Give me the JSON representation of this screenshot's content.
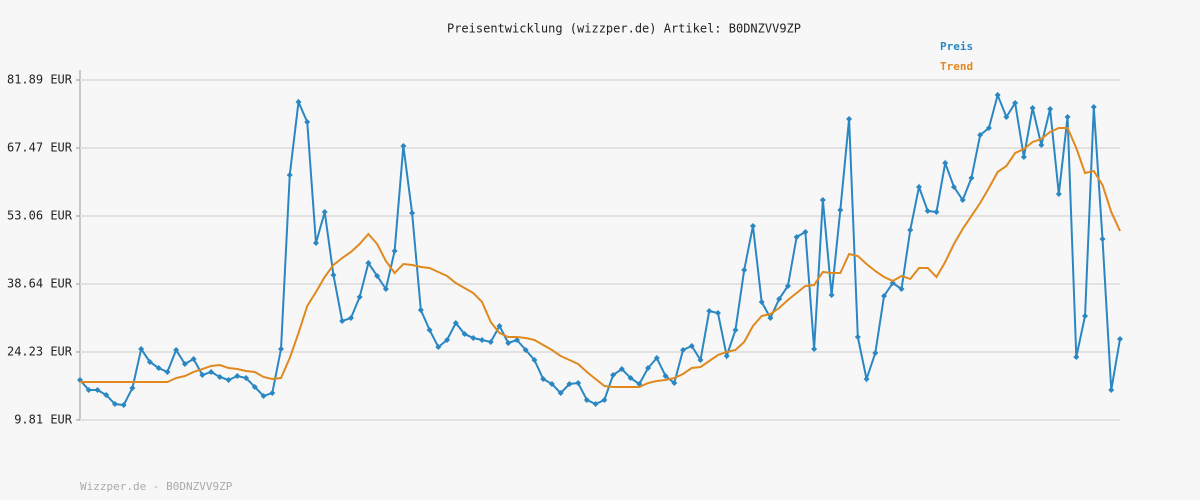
{
  "chart_data": {
    "type": "line",
    "title": "Preisentwicklung (wizzper.de) Artikel: B0DNZVV9ZP",
    "footer": "Wizzper.de - B0DNZVV9ZP",
    "ylim": [
      9.81,
      81.89
    ],
    "yticks": [
      {
        "value": 9.81,
        "label": "9.81 EUR"
      },
      {
        "value": 24.23,
        "label": "24.23 EUR"
      },
      {
        "value": 38.64,
        "label": "38.64 EUR"
      },
      {
        "value": 53.06,
        "label": "53.06 EUR"
      },
      {
        "value": 67.47,
        "label": "67.47 EUR"
      },
      {
        "value": 81.89,
        "label": "81.89 EUR"
      }
    ],
    "grid": true,
    "legend": "top-right",
    "series": [
      {
        "name": "Preis",
        "color": "#2b87c2",
        "markers": true,
        "values": [
          18.29,
          16.17,
          16.17,
          15.11,
          13.2,
          12.99,
          16.59,
          24.86,
          22.11,
          20.83,
          19.99,
          24.65,
          21.68,
          22.74,
          19.35,
          19.99,
          18.93,
          18.29,
          19.14,
          18.71,
          16.81,
          14.9,
          15.53,
          24.86,
          61.75,
          77.23,
          72.99,
          47.33,
          53.91,
          40.55,
          30.8,
          31.43,
          35.89,
          43.09,
          40.34,
          37.58,
          45.64,
          67.9,
          53.69,
          33.13,
          28.89,
          25.29,
          26.77,
          30.37,
          28.04,
          27.19,
          26.77,
          26.35,
          29.74,
          26.13,
          26.77,
          24.65,
          22.53,
          18.5,
          17.44,
          15.53,
          17.44,
          17.65,
          14.05,
          13.2,
          14.05,
          19.35,
          20.62,
          18.71,
          17.44,
          20.83,
          22.95,
          19.14,
          17.65,
          24.65,
          25.5,
          22.53,
          32.92,
          32.49,
          23.38,
          28.89,
          41.61,
          50.94,
          34.83,
          31.43,
          35.46,
          38.22,
          48.61,
          49.67,
          24.86,
          56.45,
          36.31,
          54.33,
          73.62,
          27.41,
          18.5,
          24.01,
          36.1,
          38.85,
          37.58,
          50.09,
          59.21,
          54.12,
          53.91,
          64.29,
          59.21,
          56.45,
          61.11,
          70.23,
          71.71,
          78.71,
          74.05,
          77.01,
          65.57,
          75.95,
          68.11,
          75.74,
          57.72,
          74.05,
          23.17,
          31.86,
          76.17,
          48.18,
          16.17,
          26.98
        ]
      },
      {
        "name": "Trend",
        "color": "#e0891f",
        "markers": false,
        "values": [
          17.87,
          17.87,
          17.87,
          17.87,
          17.87,
          17.87,
          17.87,
          17.87,
          17.87,
          17.87,
          17.87,
          18.71,
          19.14,
          19.99,
          20.62,
          21.26,
          21.47,
          20.83,
          20.62,
          20.2,
          19.99,
          18.93,
          18.5,
          18.71,
          22.95,
          28.25,
          33.98,
          36.95,
          40.13,
          42.67,
          44.15,
          45.43,
          47.12,
          49.24,
          47.12,
          43.52,
          40.97,
          42.88,
          42.67,
          42.25,
          42.03,
          41.19,
          40.34,
          38.85,
          37.79,
          36.73,
          34.83,
          30.59,
          28.25,
          27.41,
          27.41,
          27.19,
          26.77,
          25.71,
          24.65,
          23.38,
          22.53,
          21.68,
          19.99,
          18.5,
          17.02,
          16.81,
          16.81,
          16.81,
          16.81,
          17.65,
          18.08,
          18.29,
          18.71,
          19.56,
          20.83,
          21.05,
          22.32,
          23.59,
          24.23,
          24.65,
          26.35,
          29.74,
          31.86,
          32.28,
          33.55,
          35.25,
          36.73,
          38.22,
          38.43,
          41.19,
          40.97,
          40.97,
          45.0,
          44.58,
          42.88,
          41.4,
          40.13,
          39.28,
          40.34,
          39.7,
          42.03,
          42.03,
          40.13,
          43.31,
          47.12,
          50.3,
          53.06,
          55.81,
          58.99,
          62.39,
          63.66,
          66.41,
          67.26,
          68.75,
          69.38,
          70.87,
          71.71,
          71.71,
          67.47,
          62.17,
          62.6,
          59.63,
          53.91,
          49.88
        ]
      }
    ]
  }
}
